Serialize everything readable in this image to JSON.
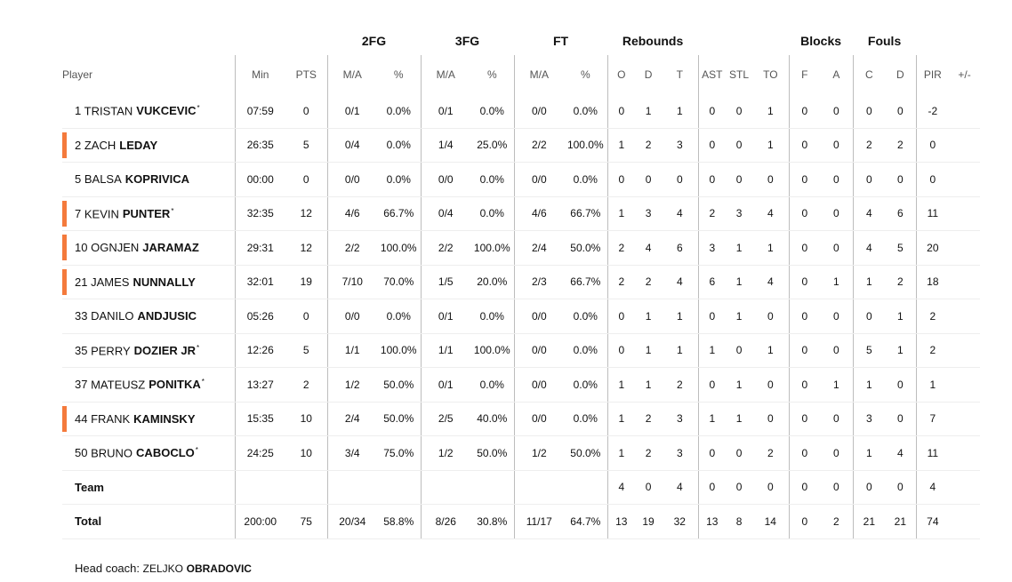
{
  "accent_color": "#f47a3c",
  "groups": {
    "fg2": "2FG",
    "fg3": "3FG",
    "ft": "FT",
    "rebounds": "Rebounds",
    "blocks": "Blocks",
    "fouls": "Fouls"
  },
  "columns": {
    "player": "Player",
    "min": "Min",
    "pts": "PTS",
    "fg2_ma": "M/A",
    "fg2_pct": "%",
    "fg3_ma": "M/A",
    "fg3_pct": "%",
    "ft_ma": "M/A",
    "ft_pct": "%",
    "reb_o": "O",
    "reb_d": "D",
    "reb_t": "T",
    "ast": "AST",
    "stl": "STL",
    "to": "TO",
    "blk_f": "F",
    "blk_a": "A",
    "foul_c": "C",
    "foul_d": "D",
    "pir": "PIR",
    "pm": "+/-"
  },
  "players": [
    {
      "num": "1",
      "first": "TRISTAN",
      "last": "VUKCEVIC",
      "star": "*",
      "on_court": false,
      "min": "07:59",
      "pts": "0",
      "fg2_ma": "0/1",
      "fg2_pct": "0.0%",
      "fg3_ma": "0/1",
      "fg3_pct": "0.0%",
      "ft_ma": "0/0",
      "ft_pct": "0.0%",
      "reb_o": "0",
      "reb_d": "1",
      "reb_t": "1",
      "ast": "0",
      "stl": "0",
      "to": "1",
      "blk_f": "0",
      "blk_a": "0",
      "foul_c": "0",
      "foul_d": "0",
      "pir": "-2"
    },
    {
      "num": "2",
      "first": "ZACH",
      "last": "LEDAY",
      "star": "",
      "on_court": true,
      "min": "26:35",
      "pts": "5",
      "fg2_ma": "0/4",
      "fg2_pct": "0.0%",
      "fg3_ma": "1/4",
      "fg3_pct": "25.0%",
      "ft_ma": "2/2",
      "ft_pct": "100.0%",
      "reb_o": "1",
      "reb_d": "2",
      "reb_t": "3",
      "ast": "0",
      "stl": "0",
      "to": "1",
      "blk_f": "0",
      "blk_a": "0",
      "foul_c": "2",
      "foul_d": "2",
      "pir": "0"
    },
    {
      "num": "5",
      "first": "BALSA",
      "last": "KOPRIVICA",
      "star": "",
      "on_court": false,
      "min": "00:00",
      "pts": "0",
      "fg2_ma": "0/0",
      "fg2_pct": "0.0%",
      "fg3_ma": "0/0",
      "fg3_pct": "0.0%",
      "ft_ma": "0/0",
      "ft_pct": "0.0%",
      "reb_o": "0",
      "reb_d": "0",
      "reb_t": "0",
      "ast": "0",
      "stl": "0",
      "to": "0",
      "blk_f": "0",
      "blk_a": "0",
      "foul_c": "0",
      "foul_d": "0",
      "pir": "0"
    },
    {
      "num": "7",
      "first": "KEVIN",
      "last": "PUNTER",
      "star": "*",
      "on_court": true,
      "min": "32:35",
      "pts": "12",
      "fg2_ma": "4/6",
      "fg2_pct": "66.7%",
      "fg3_ma": "0/4",
      "fg3_pct": "0.0%",
      "ft_ma": "4/6",
      "ft_pct": "66.7%",
      "reb_o": "1",
      "reb_d": "3",
      "reb_t": "4",
      "ast": "2",
      "stl": "3",
      "to": "4",
      "blk_f": "0",
      "blk_a": "0",
      "foul_c": "4",
      "foul_d": "6",
      "pir": "11"
    },
    {
      "num": "10",
      "first": "OGNJEN",
      "last": "JARAMAZ",
      "star": "",
      "on_court": true,
      "min": "29:31",
      "pts": "12",
      "fg2_ma": "2/2",
      "fg2_pct": "100.0%",
      "fg3_ma": "2/2",
      "fg3_pct": "100.0%",
      "ft_ma": "2/4",
      "ft_pct": "50.0%",
      "reb_o": "2",
      "reb_d": "4",
      "reb_t": "6",
      "ast": "3",
      "stl": "1",
      "to": "1",
      "blk_f": "0",
      "blk_a": "0",
      "foul_c": "4",
      "foul_d": "5",
      "pir": "20"
    },
    {
      "num": "21",
      "first": "JAMES",
      "last": "NUNNALLY",
      "star": "",
      "on_court": true,
      "min": "32:01",
      "pts": "19",
      "fg2_ma": "7/10",
      "fg2_pct": "70.0%",
      "fg3_ma": "1/5",
      "fg3_pct": "20.0%",
      "ft_ma": "2/3",
      "ft_pct": "66.7%",
      "reb_o": "2",
      "reb_d": "2",
      "reb_t": "4",
      "ast": "6",
      "stl": "1",
      "to": "4",
      "blk_f": "0",
      "blk_a": "1",
      "foul_c": "1",
      "foul_d": "2",
      "pir": "18"
    },
    {
      "num": "33",
      "first": "DANILO",
      "last": "ANDJUSIC",
      "star": "",
      "on_court": false,
      "min": "05:26",
      "pts": "0",
      "fg2_ma": "0/0",
      "fg2_pct": "0.0%",
      "fg3_ma": "0/1",
      "fg3_pct": "0.0%",
      "ft_ma": "0/0",
      "ft_pct": "0.0%",
      "reb_o": "0",
      "reb_d": "1",
      "reb_t": "1",
      "ast": "0",
      "stl": "1",
      "to": "0",
      "blk_f": "0",
      "blk_a": "0",
      "foul_c": "0",
      "foul_d": "1",
      "pir": "2"
    },
    {
      "num": "35",
      "first": "PERRY",
      "last": "DOZIER JR",
      "star": "*",
      "on_court": false,
      "min": "12:26",
      "pts": "5",
      "fg2_ma": "1/1",
      "fg2_pct": "100.0%",
      "fg3_ma": "1/1",
      "fg3_pct": "100.0%",
      "ft_ma": "0/0",
      "ft_pct": "0.0%",
      "reb_o": "0",
      "reb_d": "1",
      "reb_t": "1",
      "ast": "1",
      "stl": "0",
      "to": "1",
      "blk_f": "0",
      "blk_a": "0",
      "foul_c": "5",
      "foul_d": "1",
      "pir": "2"
    },
    {
      "num": "37",
      "first": "MATEUSZ",
      "last": "PONITKA",
      "star": "*",
      "on_court": false,
      "min": "13:27",
      "pts": "2",
      "fg2_ma": "1/2",
      "fg2_pct": "50.0%",
      "fg3_ma": "0/1",
      "fg3_pct": "0.0%",
      "ft_ma": "0/0",
      "ft_pct": "0.0%",
      "reb_o": "1",
      "reb_d": "1",
      "reb_t": "2",
      "ast": "0",
      "stl": "1",
      "to": "0",
      "blk_f": "0",
      "blk_a": "1",
      "foul_c": "1",
      "foul_d": "0",
      "pir": "1"
    },
    {
      "num": "44",
      "first": "FRANK",
      "last": "KAMINSKY",
      "star": "",
      "on_court": true,
      "min": "15:35",
      "pts": "10",
      "fg2_ma": "2/4",
      "fg2_pct": "50.0%",
      "fg3_ma": "2/5",
      "fg3_pct": "40.0%",
      "ft_ma": "0/0",
      "ft_pct": "0.0%",
      "reb_o": "1",
      "reb_d": "2",
      "reb_t": "3",
      "ast": "1",
      "stl": "1",
      "to": "0",
      "blk_f": "0",
      "blk_a": "0",
      "foul_c": "3",
      "foul_d": "0",
      "pir": "7"
    },
    {
      "num": "50",
      "first": "BRUNO",
      "last": "CABOCLO",
      "star": "*",
      "on_court": false,
      "min": "24:25",
      "pts": "10",
      "fg2_ma": "3/4",
      "fg2_pct": "75.0%",
      "fg3_ma": "1/2",
      "fg3_pct": "50.0%",
      "ft_ma": "1/2",
      "ft_pct": "50.0%",
      "reb_o": "1",
      "reb_d": "2",
      "reb_t": "3",
      "ast": "0",
      "stl": "0",
      "to": "2",
      "blk_f": "0",
      "blk_a": "0",
      "foul_c": "1",
      "foul_d": "4",
      "pir": "11"
    }
  ],
  "team": {
    "label": "Team",
    "reb_o": "4",
    "reb_d": "0",
    "reb_t": "4",
    "ast": "0",
    "stl": "0",
    "to": "0",
    "blk_f": "0",
    "blk_a": "0",
    "foul_c": "0",
    "foul_d": "0",
    "pir": "4"
  },
  "total": {
    "label": "Total",
    "min": "200:00",
    "pts": "75",
    "fg2_ma": "20/34",
    "fg2_pct": "58.8%",
    "fg3_ma": "8/26",
    "fg3_pct": "30.8%",
    "ft_ma": "11/17",
    "ft_pct": "64.7%",
    "reb_o": "13",
    "reb_d": "19",
    "reb_t": "32",
    "ast": "13",
    "stl": "8",
    "to": "14",
    "blk_f": "0",
    "blk_a": "2",
    "foul_c": "21",
    "foul_d": "21",
    "pir": "74"
  },
  "coach": {
    "label": "Head coach:",
    "first": "ZELJKO",
    "last": "OBRADOVIC"
  }
}
